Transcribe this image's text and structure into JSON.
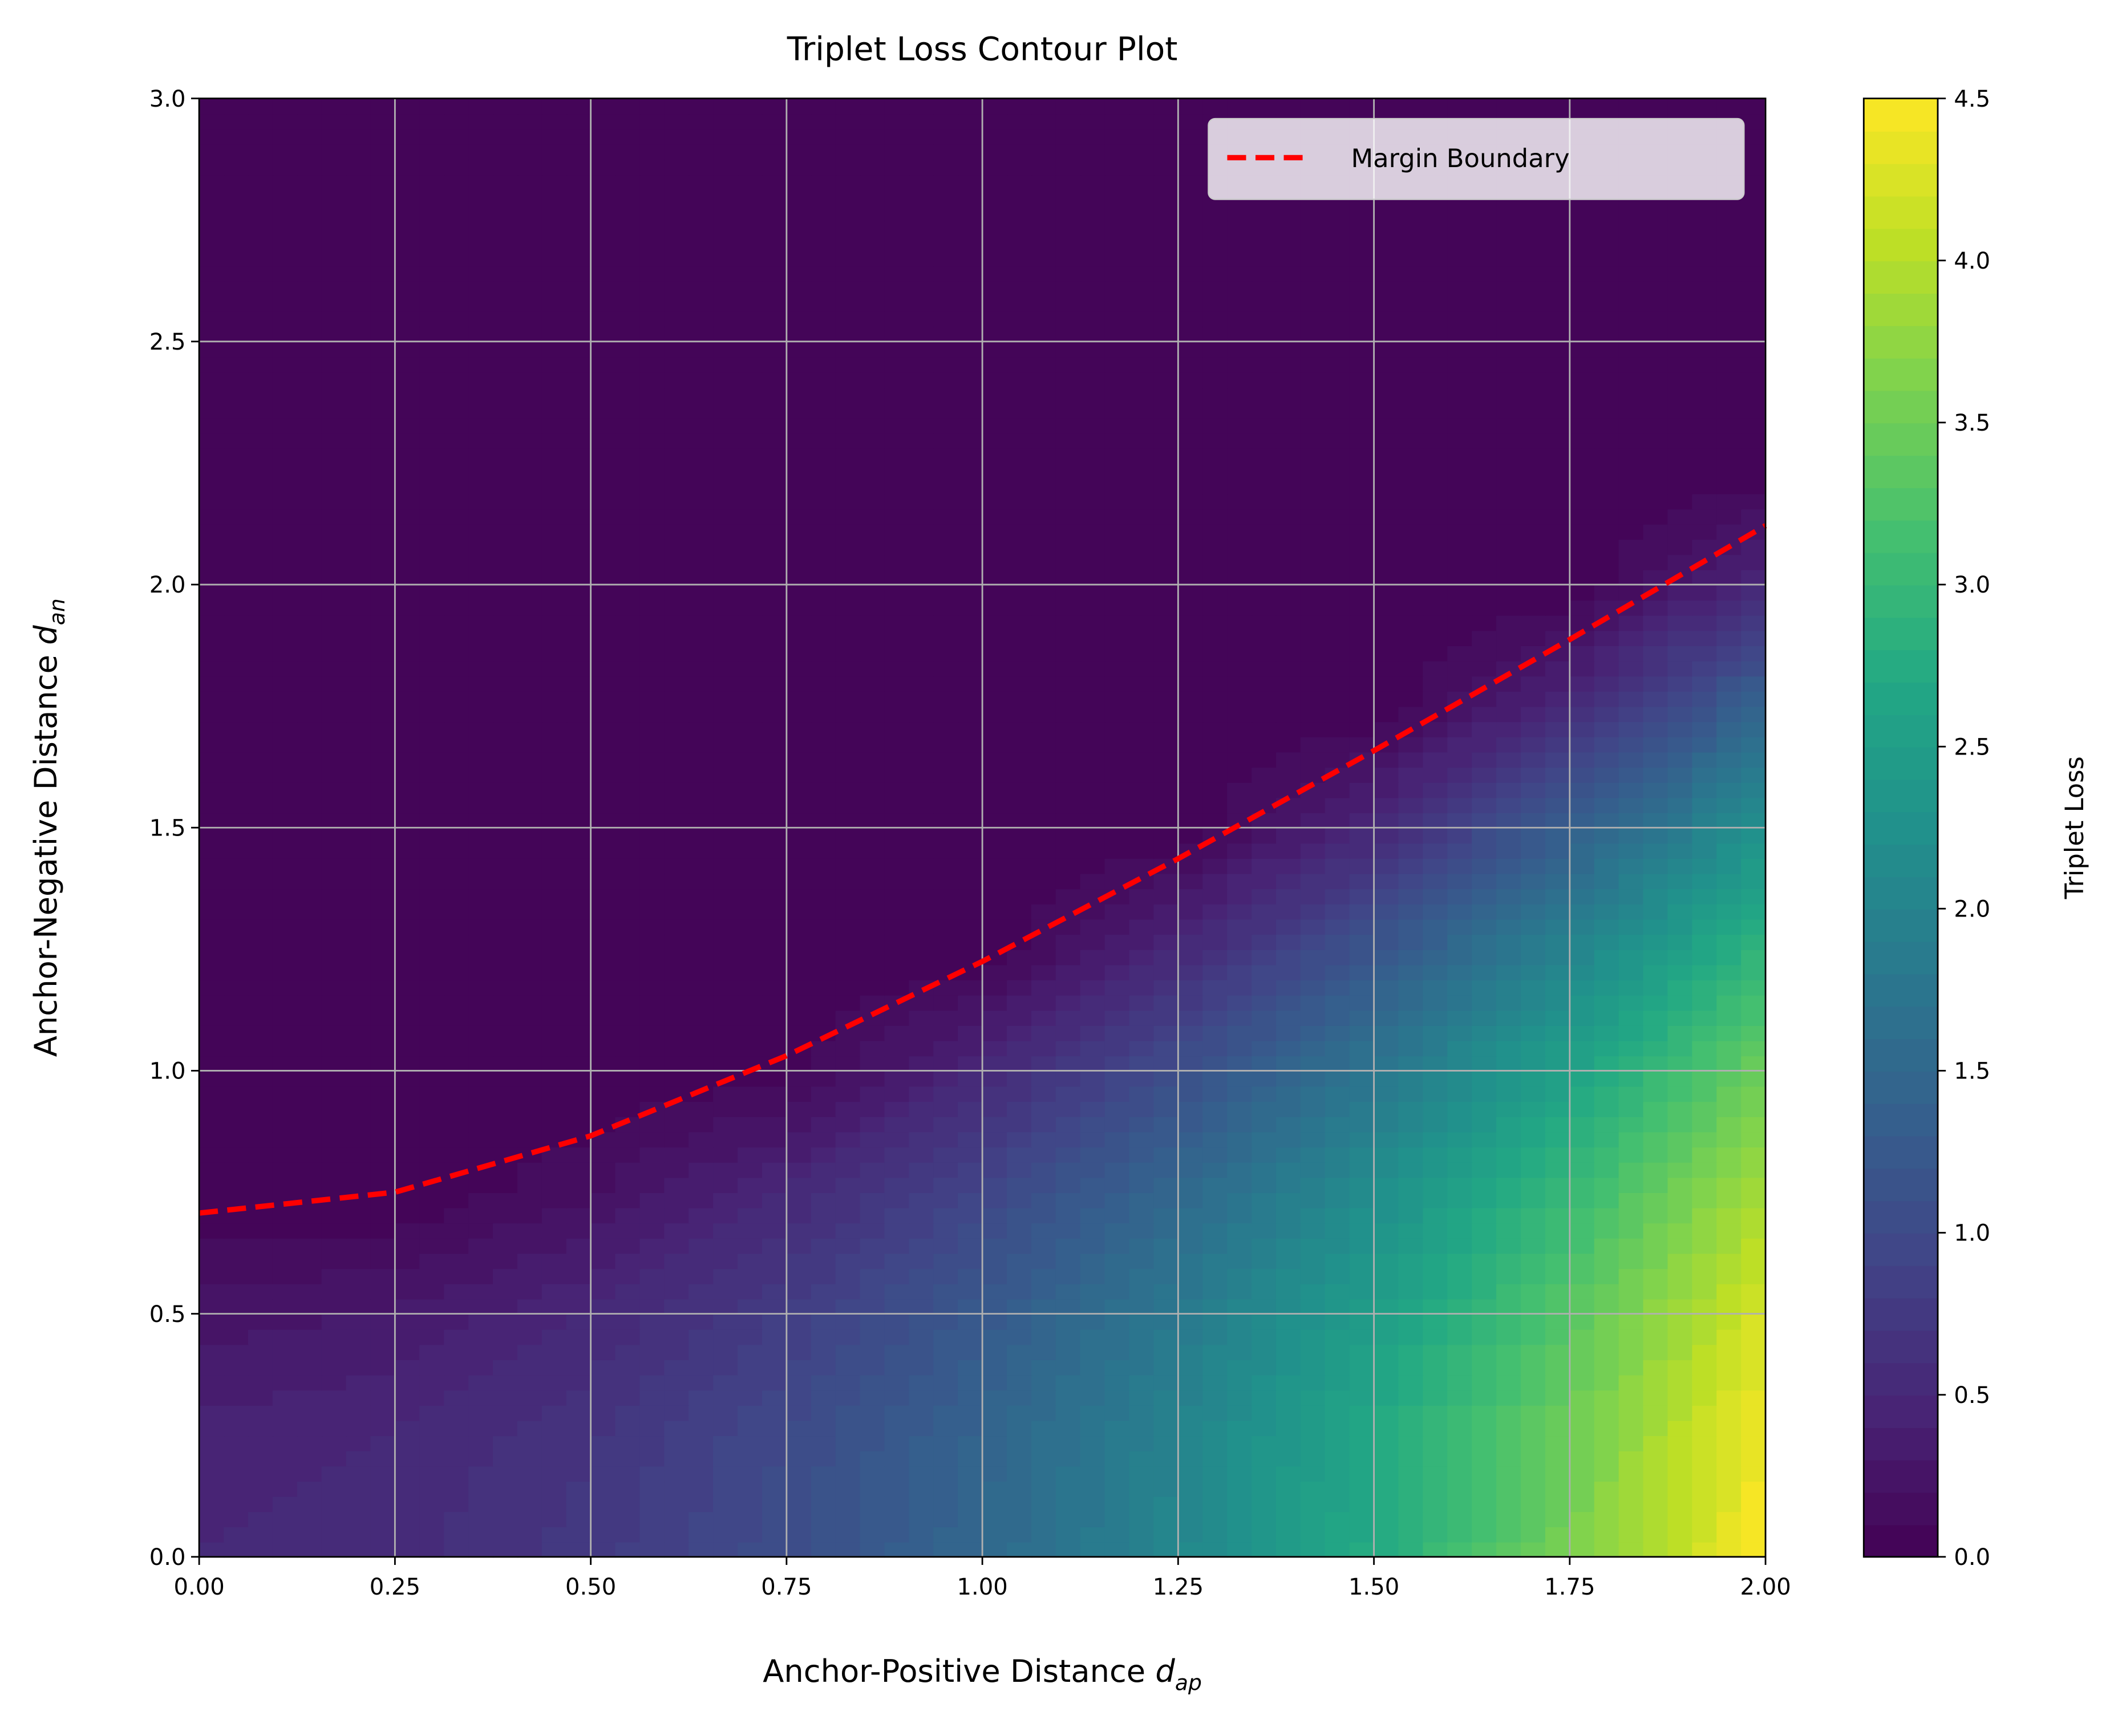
{
  "chart_data": {
    "type": "contour",
    "title": "Triplet Loss Contour Plot",
    "xlabel": {
      "text": "Anchor-Positive Distance",
      "symbol": "d",
      "subscript": "ap"
    },
    "ylabel": {
      "text": "Anchor-Negative Distance",
      "symbol": "d",
      "subscript": "an"
    },
    "colorbar_label": "Triplet Loss",
    "colormap": "viridis",
    "grid": true,
    "legend": "upper right",
    "x": [
      0,
      0.25,
      0.5,
      0.75,
      1,
      1.25,
      1.5,
      1.75,
      2
    ],
    "y": [
      0,
      0.25,
      0.5,
      0.75,
      1,
      1.25,
      1.5,
      1.75,
      2,
      2.25,
      2.5,
      2.75,
      3
    ],
    "z": [
      [
        0.5,
        0.5625,
        0.75,
        1.0625,
        1.5,
        2.0625,
        2.75,
        3.5625,
        4.5
      ],
      [
        0.4375,
        0.5,
        0.6875,
        1,
        1.4375,
        2,
        2.6875,
        3.5,
        4.4375
      ],
      [
        0.25,
        0.3125,
        0.5,
        0.8125,
        1.25,
        1.8125,
        2.5,
        3.3125,
        4.25
      ],
      [
        0,
        0,
        0.1875,
        0.5,
        0.9375,
        1.5,
        2.1875,
        3,
        3.9375
      ],
      [
        0,
        0,
        0,
        0.0625,
        0.5,
        1.0625,
        1.75,
        2.5625,
        3.5
      ],
      [
        0,
        0,
        0,
        0,
        0,
        0.5,
        1.1875,
        2,
        2.9375
      ],
      [
        0,
        0,
        0,
        0,
        0,
        0,
        0.5,
        1.3125,
        2.25
      ],
      [
        0,
        0,
        0,
        0,
        0,
        0,
        0,
        0.5,
        1.4375
      ],
      [
        0,
        0,
        0,
        0,
        0,
        0,
        0,
        0,
        0.5
      ],
      [
        0,
        0,
        0,
        0,
        0,
        0,
        0,
        0,
        0
      ],
      [
        0,
        0,
        0,
        0,
        0,
        0,
        0,
        0,
        0
      ],
      [
        0,
        0,
        0,
        0,
        0,
        0,
        0,
        0,
        0
      ],
      [
        0,
        0,
        0,
        0,
        0,
        0,
        0,
        0,
        0
      ]
    ],
    "series": [
      {
        "name": "Margin Boundary",
        "color": "#ff0000",
        "style": "dashed",
        "x": [
          0,
          0.25,
          0.5,
          0.75,
          1,
          1.25,
          1.5,
          1.75,
          2
        ],
        "values": [
          0.7071,
          0.75,
          0.866,
          1.0308,
          1.2247,
          1.4361,
          1.6583,
          1.887,
          2.1213
        ]
      }
    ],
    "xlim": [
      0,
      2
    ],
    "ylim": [
      0,
      3
    ],
    "zlim": [
      0,
      4.5
    ],
    "xticks": [
      {
        "value": 0,
        "label": "0.00"
      },
      {
        "value": 0.25,
        "label": "0.25"
      },
      {
        "value": 0.5,
        "label": "0.50"
      },
      {
        "value": 0.75,
        "label": "0.75"
      },
      {
        "value": 1,
        "label": "1.00"
      },
      {
        "value": 1.25,
        "label": "1.25"
      },
      {
        "value": 1.5,
        "label": "1.50"
      },
      {
        "value": 1.75,
        "label": "1.75"
      },
      {
        "value": 2,
        "label": "2.00"
      }
    ],
    "yticks": [
      {
        "value": 0,
        "label": "0.0"
      },
      {
        "value": 0.5,
        "label": "0.5"
      },
      {
        "value": 1,
        "label": "1.0"
      },
      {
        "value": 1.5,
        "label": "1.5"
      },
      {
        "value": 2,
        "label": "2.0"
      },
      {
        "value": 2.5,
        "label": "2.5"
      },
      {
        "value": 3,
        "label": "3.0"
      }
    ],
    "zticks": [
      {
        "value": 0,
        "label": "0.0"
      },
      {
        "value": 0.5,
        "label": "0.5"
      },
      {
        "value": 1,
        "label": "1.0"
      },
      {
        "value": 1.5,
        "label": "1.5"
      },
      {
        "value": 2,
        "label": "2.0"
      },
      {
        "value": 2.5,
        "label": "2.5"
      },
      {
        "value": 3,
        "label": "3.0"
      },
      {
        "value": 3.5,
        "label": "3.5"
      },
      {
        "value": 4,
        "label": "4.0"
      },
      {
        "value": 4.5,
        "label": "4.5"
      }
    ]
  }
}
